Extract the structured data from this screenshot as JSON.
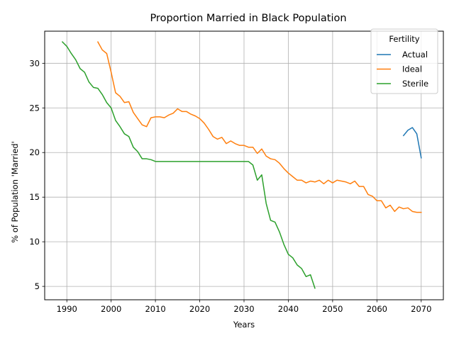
{
  "chart_data": {
    "type": "line",
    "title": "Proportion Married in Black Population",
    "xlabel": "Years",
    "ylabel": "% of Population 'Married'",
    "xlim": [
      1985,
      2075
    ],
    "ylim": [
      3.5,
      33.6
    ],
    "xticks": [
      1990,
      2000,
      2010,
      2020,
      2030,
      2040,
      2050,
      2060,
      2070
    ],
    "yticks": [
      5,
      10,
      15,
      20,
      25,
      30
    ],
    "grid": true,
    "legend": {
      "title": "Fertility",
      "position": "top-right"
    },
    "series": [
      {
        "name": "Actual",
        "color": "#1f77b4",
        "x": [
          2066,
          2067,
          2068,
          2069,
          2070
        ],
        "y": [
          21.9,
          22.5,
          22.8,
          22.1,
          19.4
        ]
      },
      {
        "name": "Ideal",
        "color": "#ff7f0e",
        "x": [
          1997,
          1998,
          1999,
          2000,
          2001,
          2002,
          2003,
          2004,
          2005,
          2006,
          2007,
          2008,
          2009,
          2010,
          2011,
          2012,
          2013,
          2014,
          2015,
          2016,
          2017,
          2018,
          2019,
          2020,
          2021,
          2022,
          2023,
          2024,
          2025,
          2026,
          2027,
          2028,
          2029,
          2030,
          2031,
          2032,
          2033,
          2034,
          2035,
          2036,
          2037,
          2038,
          2039,
          2040,
          2041,
          2042,
          2043,
          2044,
          2045,
          2046,
          2047,
          2048,
          2049,
          2050,
          2051,
          2052,
          2053,
          2054,
          2055,
          2056,
          2057,
          2058,
          2059,
          2060,
          2061,
          2062,
          2063,
          2064,
          2065,
          2066,
          2067,
          2068,
          2069,
          2070
        ],
        "y": [
          32.4,
          31.5,
          31.1,
          29.0,
          26.7,
          26.3,
          25.6,
          25.7,
          24.5,
          23.8,
          23.1,
          22.9,
          23.9,
          24.0,
          24.0,
          23.9,
          24.2,
          24.4,
          24.9,
          24.6,
          24.6,
          24.3,
          24.1,
          23.8,
          23.3,
          22.6,
          21.8,
          21.5,
          21.7,
          21.0,
          21.3,
          21.0,
          20.8,
          20.8,
          20.6,
          20.6,
          19.9,
          20.4,
          19.6,
          19.3,
          19.2,
          18.8,
          18.2,
          17.7,
          17.3,
          16.9,
          16.9,
          16.6,
          16.8,
          16.7,
          16.9,
          16.5,
          16.9,
          16.6,
          16.9,
          16.8,
          16.7,
          16.5,
          16.8,
          16.2,
          16.2,
          15.3,
          15.1,
          14.6,
          14.6,
          13.8,
          14.1,
          13.4,
          13.9,
          13.7,
          13.8,
          13.4,
          13.3,
          13.3
        ]
      },
      {
        "name": "Sterile",
        "color": "#2ca02c",
        "x": [
          1989,
          1990,
          1991,
          1992,
          1993,
          1994,
          1995,
          1996,
          1997,
          1998,
          1999,
          2000,
          2001,
          2002,
          2003,
          2004,
          2005,
          2006,
          2007,
          2008,
          2009,
          2010,
          2011,
          2012,
          2013,
          2014,
          2015,
          2016,
          2017,
          2018,
          2019,
          2020,
          2021,
          2022,
          2023,
          2024,
          2025,
          2026,
          2027,
          2028,
          2029,
          2030,
          2031,
          2032,
          2033,
          2034,
          2035,
          2036,
          2037,
          2038,
          2039,
          2040,
          2041,
          2042,
          2043,
          2044,
          2045,
          2046
        ],
        "y": [
          32.4,
          31.9,
          31.1,
          30.4,
          29.4,
          29.0,
          27.9,
          27.3,
          27.2,
          26.5,
          25.6,
          25.0,
          23.6,
          22.9,
          22.1,
          21.8,
          20.6,
          20.1,
          19.3,
          19.3,
          19.2,
          19.0,
          19.0,
          19.0,
          19.0,
          19.0,
          19.0,
          19.0,
          19.0,
          19.0,
          19.0,
          19.0,
          19.0,
          19.0,
          19.0,
          19.0,
          19.0,
          19.0,
          19.0,
          19.0,
          19.0,
          19.0,
          19.0,
          18.6,
          16.9,
          17.5,
          14.3,
          12.4,
          12.2,
          11.1,
          9.7,
          8.6,
          8.2,
          7.4,
          7.0,
          6.1,
          6.3,
          4.8
        ]
      }
    ]
  }
}
